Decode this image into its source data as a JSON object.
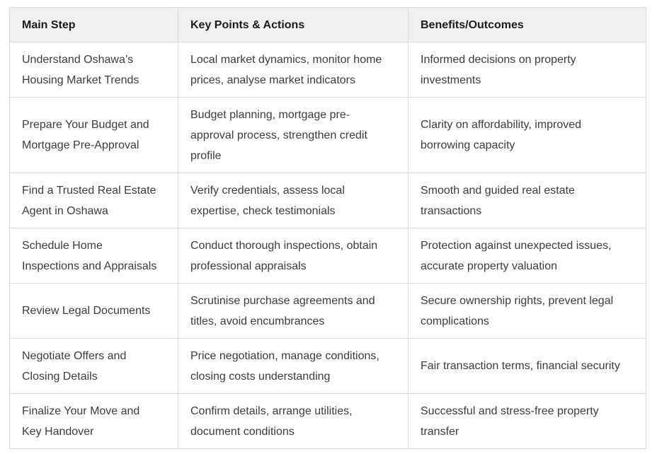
{
  "table": {
    "headers": {
      "main_step": "Main Step",
      "key_points": "Key Points & Actions",
      "benefits": "Benefits/Outcomes"
    },
    "rows": [
      {
        "main_step": "Understand Oshawa’s\nHousing Market Trends",
        "key_points": "Local market dynamics, monitor home\nprices, analyse market indicators",
        "benefits": "Informed decisions on property\ninvestments"
      },
      {
        "main_step": "Prepare Your Budget and\nMortgage Pre-Approval",
        "key_points": "Budget planning, mortgage pre-\napproval process, strengthen credit\nprofile",
        "benefits": "Clarity on affordability, improved\nborrowing capacity"
      },
      {
        "main_step": "Find a Trusted Real Estate\nAgent in Oshawa",
        "key_points": "Verify credentials, assess local\nexpertise, check testimonials",
        "benefits": "Smooth and guided real estate\ntransactions"
      },
      {
        "main_step": "Schedule Home\nInspections and Appraisals",
        "key_points": "Conduct thorough inspections, obtain\nprofessional appraisals",
        "benefits": "Protection against unexpected issues,\naccurate property valuation"
      },
      {
        "main_step": "Review Legal Documents",
        "key_points": "Scrutinise purchase agreements and\ntitles, avoid encumbrances",
        "benefits": "Secure ownership rights, prevent legal\ncomplications"
      },
      {
        "main_step": "Negotiate Offers and\nClosing Details",
        "key_points": "Price negotiation, manage conditions,\nclosing costs understanding",
        "benefits": "Fair transaction terms, financial security"
      },
      {
        "main_step": "Finalize Your Move and\nKey Handover",
        "key_points": "Confirm details, arrange utilities,\ndocument conditions",
        "benefits": "Successful and stress-free property\ntransfer"
      }
    ]
  },
  "colors": {
    "header_bg": "#f0f0f0",
    "border": "#dddddd",
    "header_text": "#1c1c1c",
    "body_text": "#3c3c3c"
  }
}
